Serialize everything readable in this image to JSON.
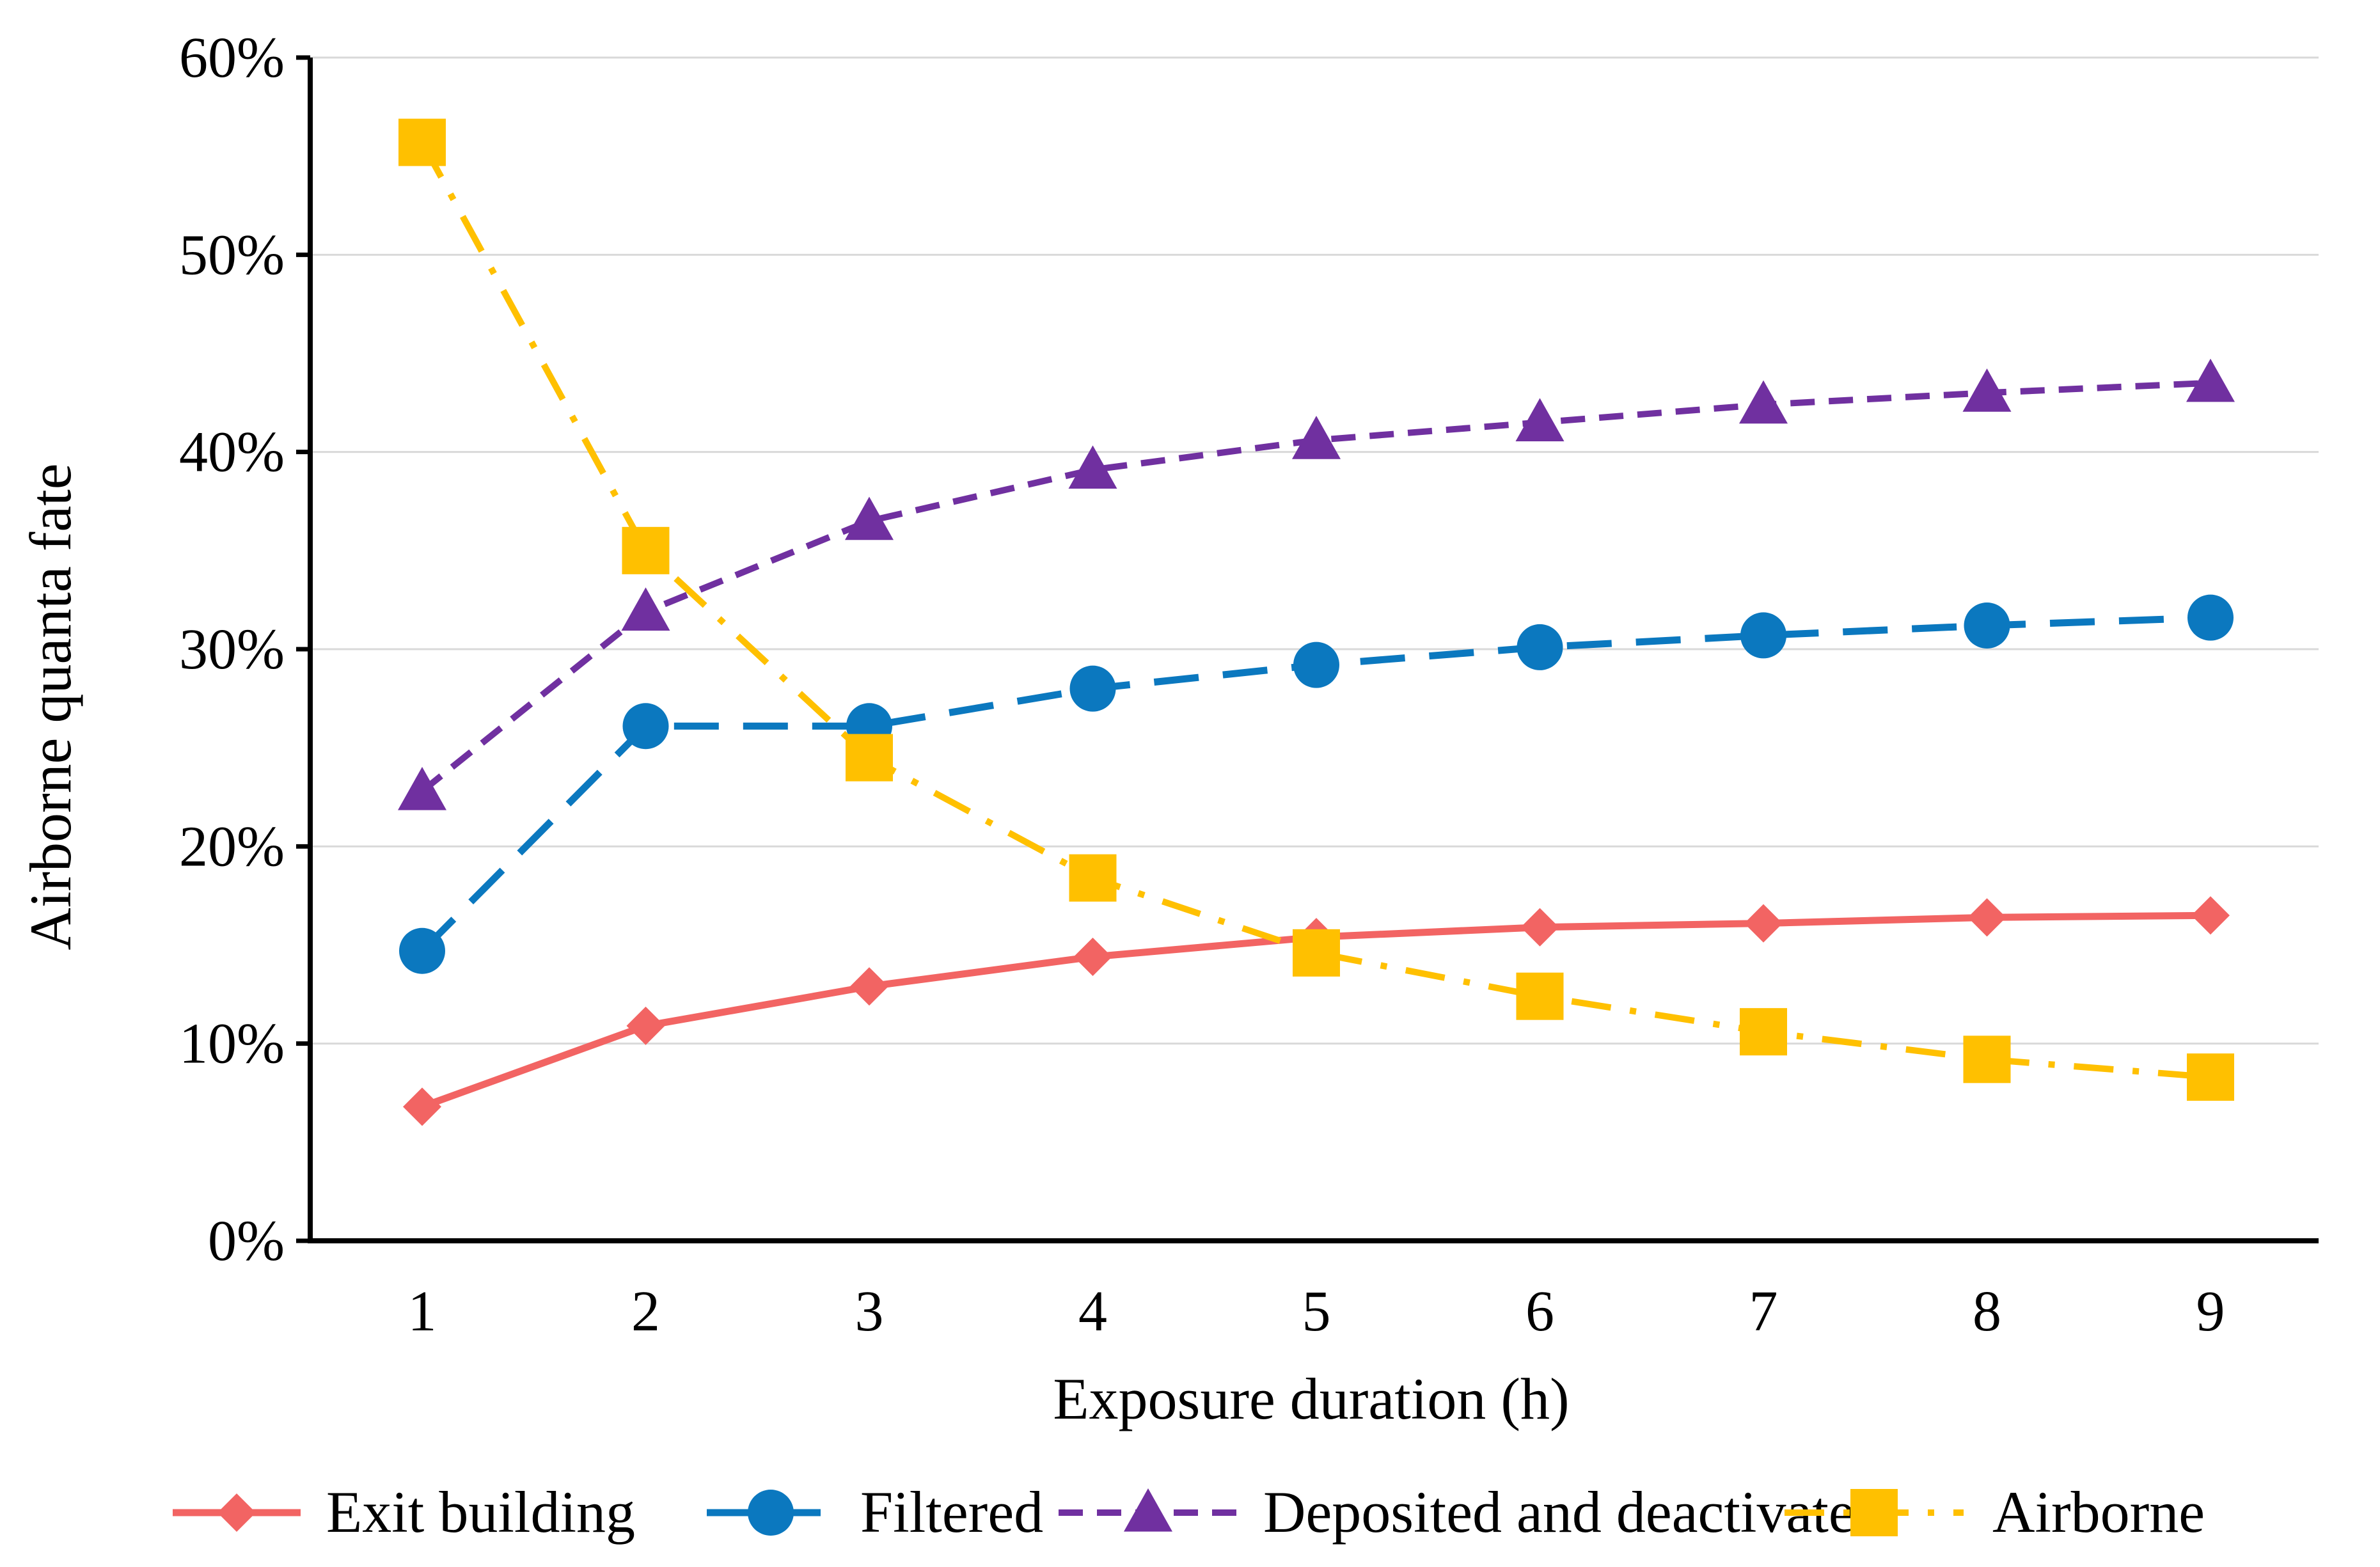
{
  "chart_data": {
    "type": "line",
    "title": "",
    "xlabel": "Exposure duration (h)",
    "ylabel": "Airborne quanta fate",
    "x": [
      1,
      2,
      3,
      4,
      5,
      6,
      7,
      8,
      9
    ],
    "x_tick_labels": [
      "1",
      "2",
      "3",
      "4",
      "5",
      "6",
      "7",
      "8",
      "9"
    ],
    "ylim": [
      0,
      60
    ],
    "y_ticks": [
      0,
      10,
      20,
      30,
      40,
      50,
      60
    ],
    "y_tick_labels": [
      "0%",
      "10%",
      "20%",
      "30%",
      "40%",
      "50%",
      "60%"
    ],
    "grid": "horizontal",
    "legend_position": "bottom",
    "series": [
      {
        "name": "Exit building",
        "values": [
          6.8,
          10.9,
          12.9,
          14.4,
          15.4,
          15.9,
          16.1,
          16.4,
          16.5
        ],
        "color": "#F26463",
        "marker": "diamond",
        "line_style": "solid"
      },
      {
        "name": "Filtered",
        "values": [
          14.7,
          26.1,
          26.1,
          28.0,
          29.2,
          30.1,
          30.7,
          31.2,
          31.6
        ],
        "color": "#0B78BF",
        "marker": "circle",
        "line_style": "long-dash"
      },
      {
        "name": "Deposited and deactivated",
        "values": [
          22.8,
          31.9,
          36.5,
          39.1,
          40.6,
          41.5,
          42.4,
          43.0,
          43.5
        ],
        "color": "#7030A0",
        "marker": "triangle",
        "line_style": "dash"
      },
      {
        "name": "Airborne",
        "values": [
          55.7,
          35.0,
          24.5,
          18.4,
          14.6,
          12.4,
          10.6,
          9.2,
          8.3
        ],
        "color": "#FFC000",
        "marker": "square",
        "line_style": "dash-dot"
      }
    ]
  }
}
